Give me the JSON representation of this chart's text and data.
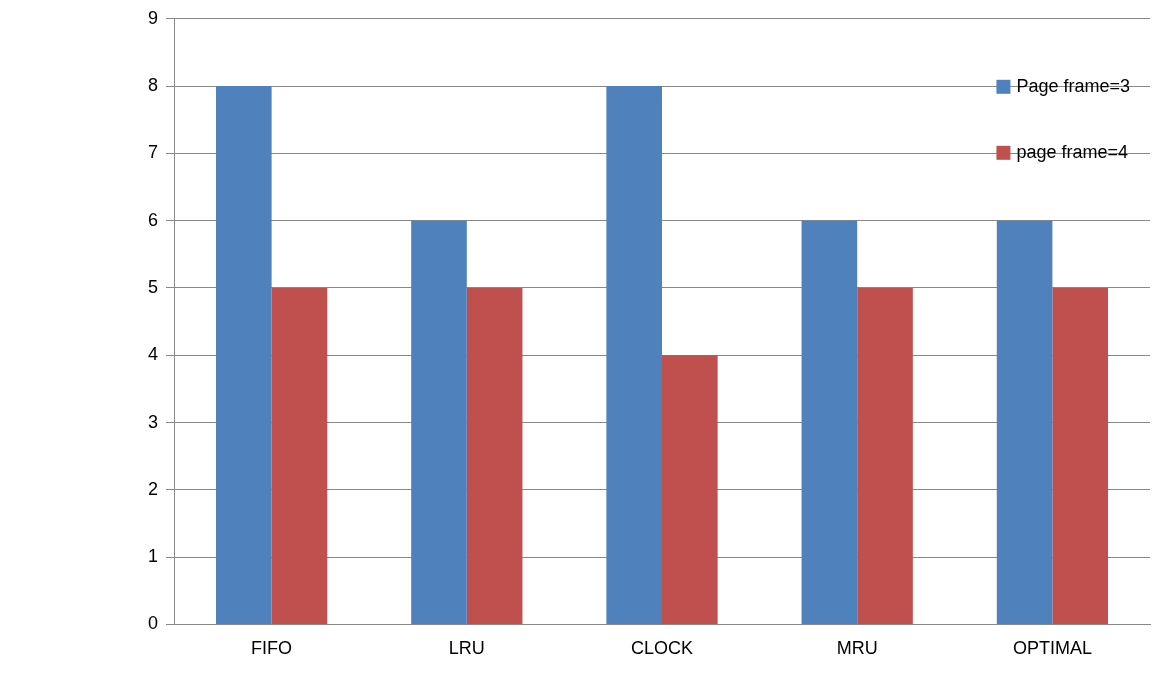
{
  "chart_data": {
    "type": "bar",
    "categories": [
      "FIFO",
      "LRU",
      "CLOCK",
      "MRU",
      "OPTIMAL"
    ],
    "series": [
      {
        "name": "Page frame=3",
        "color": "#4f81bd",
        "values": [
          8,
          6,
          8,
          6,
          6
        ]
      },
      {
        "name": "page frame=4",
        "color": "#c0504d",
        "values": [
          5,
          5,
          4,
          5,
          5
        ]
      }
    ],
    "ylim": [
      0,
      9
    ],
    "yticks": [
      0,
      1,
      2,
      3,
      4,
      5,
      6,
      7,
      8,
      9
    ],
    "grid": "y",
    "legend": "top right"
  }
}
